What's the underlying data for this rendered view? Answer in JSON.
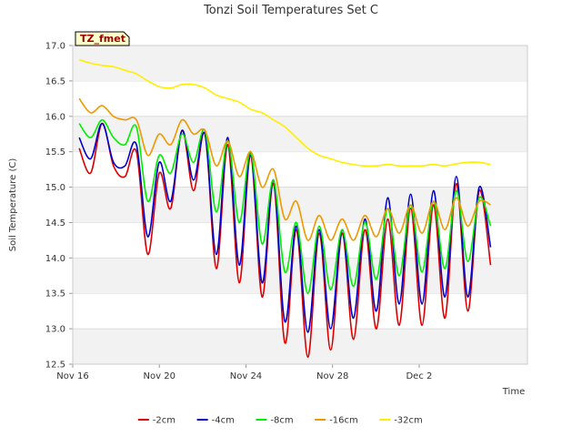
{
  "chart_data": {
    "type": "line",
    "title": "Tonzi Soil Temperatures Set C",
    "xlabel": "Time",
    "ylabel": "Soil Temperature (C)",
    "tag": "TZ_fmet",
    "ylim": [
      12.5,
      17.0
    ],
    "yticks": [
      "12.5",
      "13.0",
      "13.5",
      "14.0",
      "14.5",
      "15.0",
      "15.5",
      "16.0",
      "16.5",
      "17.0"
    ],
    "xlim": [
      0,
      21
    ],
    "xticks": [
      {
        "x": 0,
        "label": "Nov 16"
      },
      {
        "x": 4,
        "label": "Nov 20"
      },
      {
        "x": 8,
        "label": "Nov 24"
      },
      {
        "x": 12,
        "label": "Nov 28"
      },
      {
        "x": 16,
        "label": "Dec 2"
      }
    ],
    "x_start": 0.3,
    "x_end": 19.3,
    "grid": "horizontal bands",
    "legend_position": "bottom",
    "series": [
      {
        "name": "-2cm",
        "color": "#dd0000",
        "values": [
          15.55,
          15.2,
          15.9,
          15.3,
          15.15,
          15.5,
          14.05,
          15.2,
          14.7,
          15.8,
          14.95,
          15.75,
          13.85,
          15.6,
          13.65,
          15.45,
          13.45,
          15.05,
          12.8,
          14.4,
          12.6,
          14.35,
          12.7,
          14.35,
          12.85,
          14.4,
          13.0,
          14.55,
          13.05,
          14.7,
          13.05,
          14.75,
          13.15,
          15.05,
          13.25,
          14.95,
          13.9
        ]
      },
      {
        "name": "-4cm",
        "color": "#0000cc",
        "values": [
          15.7,
          15.4,
          15.9,
          15.35,
          15.3,
          15.6,
          14.3,
          15.35,
          14.8,
          15.8,
          15.1,
          15.75,
          14.05,
          15.7,
          13.9,
          15.5,
          13.65,
          15.1,
          13.1,
          14.45,
          12.95,
          14.4,
          13.0,
          14.4,
          13.15,
          14.55,
          13.25,
          14.85,
          13.35,
          14.9,
          13.35,
          14.95,
          13.45,
          15.15,
          13.45,
          15.0,
          14.15
        ]
      },
      {
        "name": "-8cm",
        "color": "#00ee00",
        "values": [
          15.9,
          15.7,
          15.95,
          15.7,
          15.6,
          15.85,
          14.8,
          15.45,
          15.2,
          15.75,
          15.35,
          15.8,
          14.65,
          15.65,
          14.5,
          15.5,
          14.2,
          15.1,
          13.8,
          14.5,
          13.5,
          14.45,
          13.55,
          14.4,
          13.6,
          14.5,
          13.7,
          14.7,
          13.75,
          14.75,
          13.8,
          14.8,
          13.85,
          14.95,
          13.95,
          14.85,
          14.45
        ]
      },
      {
        "name": "-16cm",
        "color": "#ee9900",
        "values": [
          16.25,
          16.05,
          16.15,
          16.0,
          15.95,
          15.95,
          15.45,
          15.75,
          15.6,
          15.95,
          15.75,
          15.8,
          15.3,
          15.65,
          15.15,
          15.5,
          15.0,
          15.25,
          14.55,
          14.8,
          14.25,
          14.6,
          14.25,
          14.55,
          14.25,
          14.6,
          14.3,
          14.7,
          14.35,
          14.75,
          14.35,
          14.8,
          14.4,
          14.85,
          14.45,
          14.8,
          14.75
        ]
      },
      {
        "name": "-32cm",
        "color": "#ffee00",
        "values": [
          16.8,
          16.75,
          16.72,
          16.7,
          16.65,
          16.6,
          16.5,
          16.42,
          16.4,
          16.45,
          16.45,
          16.4,
          16.3,
          16.25,
          16.2,
          16.1,
          16.05,
          15.95,
          15.85,
          15.7,
          15.55,
          15.45,
          15.4,
          15.35,
          15.32,
          15.3,
          15.3,
          15.32,
          15.3,
          15.3,
          15.3,
          15.32,
          15.3,
          15.33,
          15.35,
          15.35,
          15.32
        ]
      }
    ]
  }
}
